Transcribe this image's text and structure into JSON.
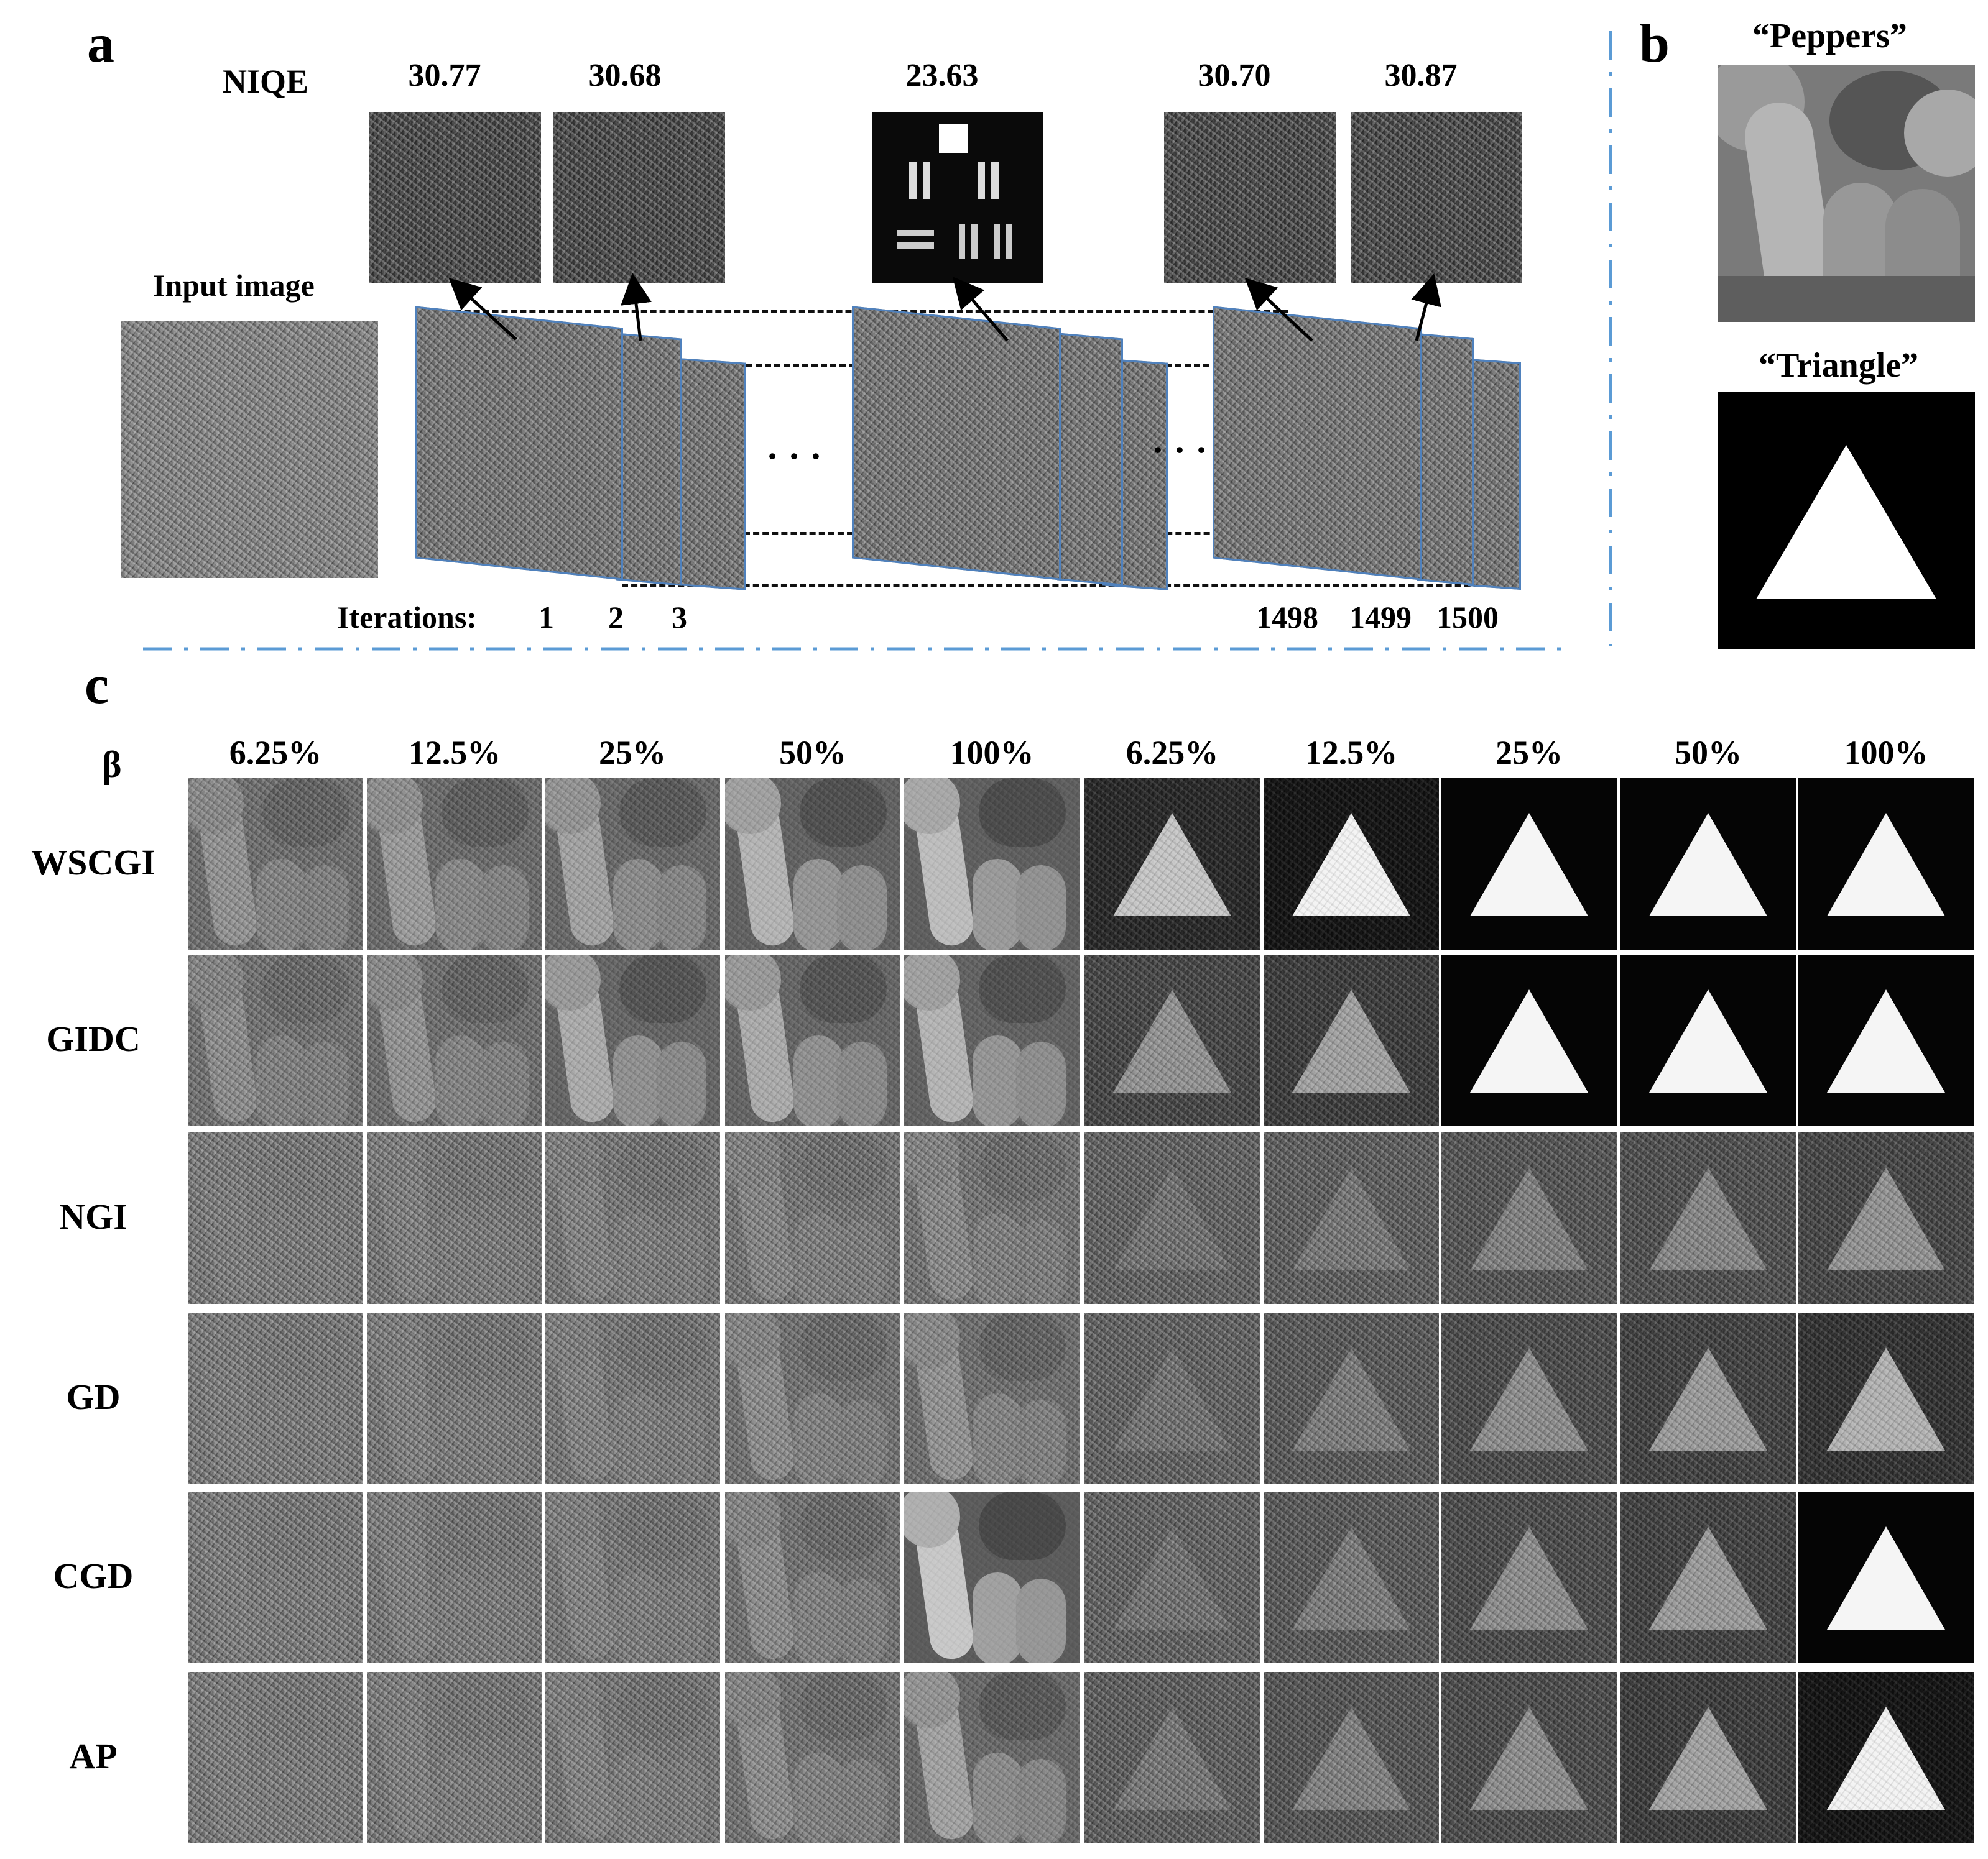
{
  "panel_a": {
    "letter": "a",
    "niqe_label": "NIQE",
    "niqe_values": [
      "30.77",
      "30.68",
      "23.63",
      "30.70",
      "30.87"
    ],
    "input_label": "Input image",
    "iterations_label": "Iterations:",
    "iterations": [
      "1",
      "2",
      "3",
      "1498",
      "1499",
      "1500"
    ],
    "ellipsis": "· · ·"
  },
  "panel_b": {
    "letter": "b",
    "peppers_label": "“Peppers”",
    "triangle_label": "“Triangle”"
  },
  "panel_c": {
    "letter": "c",
    "beta_label": "β",
    "columns": [
      "6.25%",
      "12.5%",
      "25%",
      "50%",
      "100%",
      "6.25%",
      "12.5%",
      "25%",
      "50%",
      "100%"
    ],
    "methods": [
      "WSCGI",
      "GIDC",
      "NGI",
      "GD",
      "CGD",
      "AP"
    ]
  },
  "colors": {
    "divider": "#5b9bd5",
    "frame": "#4f81bd"
  }
}
